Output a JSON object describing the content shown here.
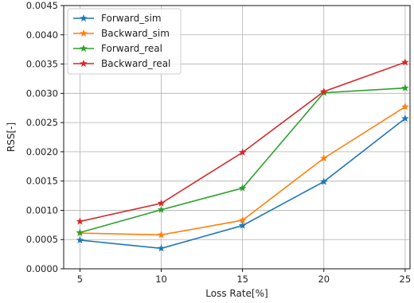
{
  "chart_data": {
    "type": "line",
    "title": "",
    "xlabel": "Loss Rate[%]",
    "ylabel": "RSS[-]",
    "x": [
      5,
      10,
      15,
      20,
      25
    ],
    "xlim": [
      4.0,
      25.3
    ],
    "ylim": [
      0.0,
      0.0045
    ],
    "xticks": [
      5,
      10,
      15,
      20,
      25
    ],
    "xtick_labels": [
      "5",
      "10",
      "15",
      "20",
      "25"
    ],
    "yticks": [
      0.0,
      0.0005,
      0.001,
      0.0015,
      0.002,
      0.0025,
      0.003,
      0.0035,
      0.004,
      0.0045
    ],
    "ytick_labels": [
      "0.0000",
      "0.0005",
      "0.0010",
      "0.0015",
      "0.0020",
      "0.0025",
      "0.0030",
      "0.0035",
      "0.0040",
      "0.0045"
    ],
    "grid": true,
    "legend_position": "top-left",
    "marker": "star",
    "series": [
      {
        "name": "Forward_sim",
        "color": "#1f77b4",
        "values": [
          0.00049,
          0.00035,
          0.00074,
          0.00149,
          0.00257
        ]
      },
      {
        "name": "Backward_sim",
        "color": "#ff7f0e",
        "values": [
          0.00061,
          0.00058,
          0.00083,
          0.00189,
          0.00277
        ]
      },
      {
        "name": "Forward_real",
        "color": "#2ca02c",
        "values": [
          0.00062,
          0.00101,
          0.00138,
          0.00301,
          0.00309
        ]
      },
      {
        "name": "Backward_real",
        "color": "#d62728",
        "values": [
          0.00081,
          0.00112,
          0.00199,
          0.00303,
          0.00353
        ]
      }
    ]
  }
}
